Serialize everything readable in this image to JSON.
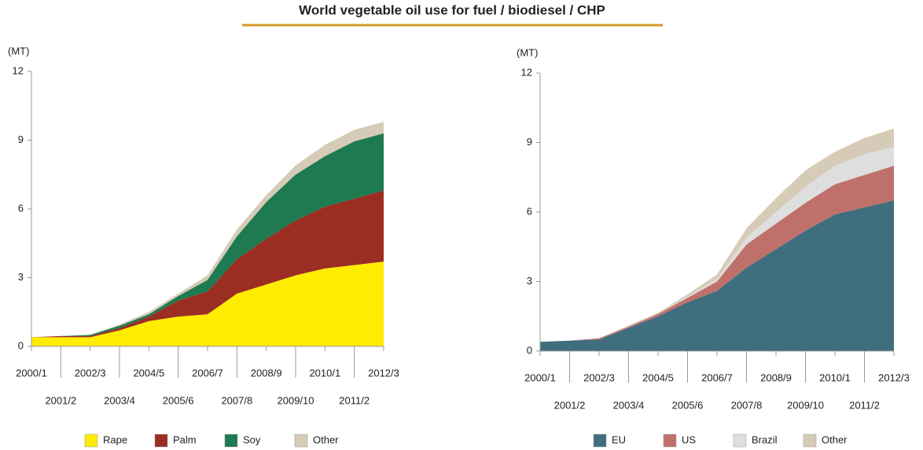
{
  "title": "World vegetable oil use for fuel / biodiesel / CHP",
  "chart_data": [
    {
      "type": "stacked_area",
      "y_label": "(MT)",
      "categories": [
        "2000/1",
        "2001/2",
        "2002/3",
        "2003/4",
        "2004/5",
        "2005/6",
        "2006/7",
        "2007/8",
        "2008/9",
        "2009/10",
        "2010/1",
        "2011/2",
        "2012/3"
      ],
      "ylim": [
        0,
        12
      ],
      "yticks": [
        0,
        3,
        6,
        9,
        12
      ],
      "series": [
        {
          "name": "Rape",
          "color": "#ffec00",
          "values": [
            0.4,
            0.4,
            0.4,
            0.7,
            1.1,
            1.3,
            1.4,
            2.3,
            2.7,
            3.1,
            3.4,
            3.55,
            3.7
          ]
        },
        {
          "name": "Palm",
          "color": "#9b2d23",
          "values": [
            0,
            0.05,
            0.05,
            0.1,
            0.2,
            0.7,
            1.0,
            1.5,
            2.0,
            2.4,
            2.7,
            2.9,
            3.1
          ]
        },
        {
          "name": "Soy",
          "color": "#1e7a50",
          "values": [
            0,
            0,
            0.05,
            0.1,
            0.1,
            0.2,
            0.5,
            1.0,
            1.6,
            2.0,
            2.2,
            2.5,
            2.5
          ]
        },
        {
          "name": "Other",
          "color": "#d6cbb6",
          "values": [
            0,
            0,
            0,
            0.05,
            0.1,
            0.1,
            0.2,
            0.3,
            0.3,
            0.4,
            0.5,
            0.5,
            0.5
          ]
        }
      ]
    },
    {
      "type": "stacked_area",
      "y_label": "(MT)",
      "categories": [
        "2000/1",
        "2001/2",
        "2002/3",
        "2003/4",
        "2004/5",
        "2005/6",
        "2006/7",
        "2007/8",
        "2008/9",
        "2009/10",
        "2010/1",
        "2011/2",
        "2012/3"
      ],
      "ylim": [
        0,
        12
      ],
      "yticks": [
        0,
        3,
        6,
        9,
        12
      ],
      "series": [
        {
          "name": "EU",
          "color": "#3f6e7f",
          "values": [
            0.4,
            0.45,
            0.5,
            1.0,
            1.5,
            2.1,
            2.6,
            3.6,
            4.4,
            5.2,
            5.9,
            6.2,
            6.5
          ]
        },
        {
          "name": "US",
          "color": "#c0706a",
          "values": [
            0,
            0,
            0.05,
            0.05,
            0.1,
            0.2,
            0.4,
            1.0,
            1.1,
            1.2,
            1.3,
            1.4,
            1.5
          ]
        },
        {
          "name": "Brazil",
          "color": "#dedede",
          "values": [
            0,
            0,
            0,
            0,
            0,
            0.05,
            0.1,
            0.3,
            0.5,
            0.7,
            0.8,
            0.9,
            0.8
          ]
        },
        {
          "name": "Other",
          "color": "#d6cbb6",
          "values": [
            0,
            0,
            0,
            0.05,
            0.05,
            0.1,
            0.2,
            0.4,
            0.6,
            0.7,
            0.6,
            0.7,
            0.8
          ]
        }
      ]
    }
  ]
}
